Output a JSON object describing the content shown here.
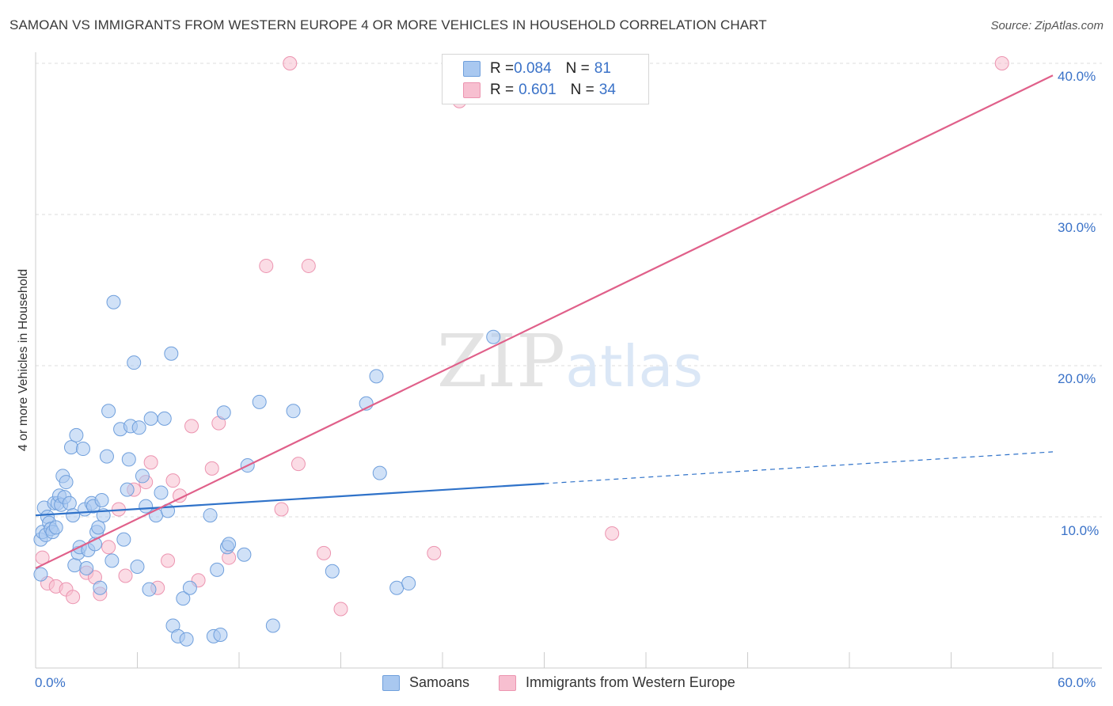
{
  "header": {
    "title": "SAMOAN VS IMMIGRANTS FROM WESTERN EUROPE 4 OR MORE VEHICLES IN HOUSEHOLD CORRELATION CHART",
    "source": "Source: ZipAtlas.com"
  },
  "watermark": "ZIPatlas",
  "legend": {
    "rows": [
      {
        "r_label": "R = ",
        "r_value": "0.084",
        "n_label": "N = ",
        "n_value": "81"
      },
      {
        "r_label": "R = ",
        "r_value": "0.601",
        "n_label": "N = ",
        "n_value": "34"
      }
    ]
  },
  "bottom_legend": {
    "series1": "Samoans",
    "series2": "Immigrants from Western Europe"
  },
  "colors": {
    "series1_fill": "#a9c8f0",
    "series1_stroke": "#6f9fdc",
    "series1_line": "#2f72c9",
    "series2_fill": "#f7bfd0",
    "series2_stroke": "#ec94b0",
    "series2_line": "#e0608a",
    "axis_label": "#3a72c8",
    "grid": "#dcdcdc"
  },
  "chart_data": {
    "type": "scatter",
    "title": "SAMOAN VS IMMIGRANTS FROM WESTERN EUROPE 4 OR MORE VEHICLES IN HOUSEHOLD CORRELATION CHART",
    "xlabel": "",
    "ylabel": "4 or more Vehicles in Household",
    "xlim": [
      0,
      60
    ],
    "ylim": [
      0,
      40
    ],
    "x_tick_labels": [
      "0.0%",
      "60.0%"
    ],
    "y_tick_labels": [
      "10.0%",
      "20.0%",
      "30.0%",
      "40.0%"
    ],
    "y_ticks": [
      10,
      20,
      30,
      40
    ],
    "grid": true,
    "legend_position": "top-center",
    "series": [
      {
        "name": "Samoans",
        "points": [
          [
            0.3,
            6.2
          ],
          [
            0.3,
            8.5
          ],
          [
            0.4,
            9.0
          ],
          [
            0.5,
            10.6
          ],
          [
            0.6,
            8.8
          ],
          [
            0.7,
            10.0
          ],
          [
            0.8,
            9.6
          ],
          [
            0.9,
            9.2
          ],
          [
            1.0,
            9.0
          ],
          [
            1.1,
            10.9
          ],
          [
            1.2,
            9.3
          ],
          [
            1.3,
            10.9
          ],
          [
            1.4,
            11.4
          ],
          [
            1.5,
            10.8
          ],
          [
            1.6,
            12.7
          ],
          [
            1.7,
            11.3
          ],
          [
            1.8,
            12.3
          ],
          [
            2.0,
            10.9
          ],
          [
            2.1,
            14.6
          ],
          [
            2.2,
            10.1
          ],
          [
            2.3,
            6.8
          ],
          [
            2.4,
            15.4
          ],
          [
            2.5,
            7.6
          ],
          [
            2.6,
            8.0
          ],
          [
            2.8,
            14.5
          ],
          [
            2.9,
            10.5
          ],
          [
            3.0,
            6.6
          ],
          [
            3.1,
            7.8
          ],
          [
            3.3,
            10.9
          ],
          [
            3.4,
            10.7
          ],
          [
            3.5,
            8.2
          ],
          [
            3.6,
            9.0
          ],
          [
            3.7,
            9.3
          ],
          [
            3.8,
            5.3
          ],
          [
            3.9,
            11.1
          ],
          [
            4.0,
            10.1
          ],
          [
            4.2,
            14.0
          ],
          [
            4.3,
            17.0
          ],
          [
            4.5,
            7.1
          ],
          [
            4.6,
            24.2
          ],
          [
            5.0,
            15.8
          ],
          [
            5.2,
            8.5
          ],
          [
            5.4,
            11.8
          ],
          [
            5.5,
            13.8
          ],
          [
            5.6,
            16.0
          ],
          [
            5.8,
            20.2
          ],
          [
            6.0,
            6.7
          ],
          [
            6.1,
            15.9
          ],
          [
            6.3,
            12.7
          ],
          [
            6.5,
            10.7
          ],
          [
            6.7,
            5.2
          ],
          [
            6.8,
            16.5
          ],
          [
            7.1,
            10.1
          ],
          [
            7.4,
            11.6
          ],
          [
            7.6,
            16.5
          ],
          [
            7.8,
            10.4
          ],
          [
            8.0,
            20.8
          ],
          [
            8.1,
            2.8
          ],
          [
            8.4,
            2.1
          ],
          [
            8.7,
            4.6
          ],
          [
            8.9,
            1.9
          ],
          [
            9.1,
            5.3
          ],
          [
            10.3,
            10.1
          ],
          [
            10.5,
            2.1
          ],
          [
            10.7,
            6.5
          ],
          [
            10.9,
            2.2
          ],
          [
            11.1,
            16.9
          ],
          [
            11.3,
            8.0
          ],
          [
            11.4,
            8.2
          ],
          [
            12.3,
            7.5
          ],
          [
            12.5,
            13.4
          ],
          [
            13.2,
            17.6
          ],
          [
            14.0,
            2.8
          ],
          [
            15.2,
            17.0
          ],
          [
            17.5,
            6.4
          ],
          [
            19.5,
            17.5
          ],
          [
            20.1,
            19.3
          ],
          [
            20.3,
            12.9
          ],
          [
            21.3,
            5.3
          ],
          [
            22.0,
            5.6
          ],
          [
            27.0,
            21.9
          ]
        ]
      },
      {
        "name": "Immigrants from Western Europe",
        "points": [
          [
            0.4,
            7.3
          ],
          [
            0.7,
            5.6
          ],
          [
            1.2,
            5.4
          ],
          [
            1.8,
            5.2
          ],
          [
            2.2,
            4.7
          ],
          [
            3.0,
            6.3
          ],
          [
            3.5,
            6.0
          ],
          [
            3.8,
            4.9
          ],
          [
            4.3,
            8.0
          ],
          [
            4.9,
            10.5
          ],
          [
            5.3,
            6.1
          ],
          [
            5.8,
            11.8
          ],
          [
            6.5,
            12.3
          ],
          [
            6.8,
            13.6
          ],
          [
            7.2,
            5.3
          ],
          [
            7.8,
            7.1
          ],
          [
            8.1,
            12.4
          ],
          [
            8.5,
            11.4
          ],
          [
            9.2,
            16.0
          ],
          [
            9.6,
            5.8
          ],
          [
            10.4,
            13.2
          ],
          [
            10.8,
            16.2
          ],
          [
            11.4,
            7.3
          ],
          [
            13.6,
            26.6
          ],
          [
            14.5,
            10.5
          ],
          [
            15.0,
            40.0
          ],
          [
            15.5,
            13.5
          ],
          [
            16.1,
            26.6
          ],
          [
            17.0,
            7.6
          ],
          [
            18.0,
            3.9
          ],
          [
            23.5,
            7.6
          ],
          [
            25.0,
            37.5
          ],
          [
            34.0,
            8.9
          ],
          [
            57.0,
            40.0
          ]
        ]
      }
    ],
    "trend_lines": [
      {
        "series": "Samoans",
        "x_solid": [
          0,
          30
        ],
        "x_dashed": [
          30,
          60
        ],
        "y_start": 10.1,
        "y_at_30": 12.2,
        "y_end": 14.3
      },
      {
        "series": "Immigrants from Western Europe",
        "x": [
          0,
          60
        ],
        "y": [
          6.6,
          39.2
        ]
      }
    ]
  }
}
